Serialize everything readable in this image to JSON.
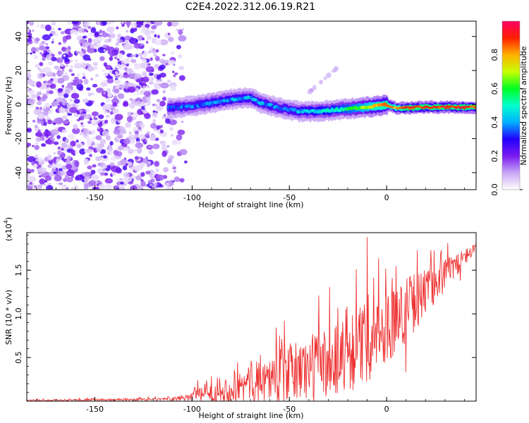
{
  "figure": {
    "title": "C2E4.2022.312.06.19.R21"
  },
  "colorbar": {
    "label": "Normalized spectral amplitude",
    "ticks": [
      "0.0",
      "0.2",
      "0.4",
      "0.6",
      "0.8"
    ],
    "tick_values": [
      0.0,
      0.2,
      0.4,
      0.6,
      0.8
    ],
    "range": [
      0,
      1
    ],
    "colors": [
      "#ffffff",
      "#c8a6f5",
      "#7a1af0",
      "#2200ff",
      "#00b0ff",
      "#00ffcc",
      "#00ff20",
      "#c8ff00",
      "#ffb000",
      "#ff2000",
      "#ff0066"
    ]
  },
  "chart_data": [
    {
      "type": "heatmap",
      "title": "C2E4.2022.312.06.19.R21",
      "xlabel": "Height of straight line (km)",
      "ylabel": "Frequency (Hz)",
      "xlim": [
        -185,
        46
      ],
      "ylim": [
        -50,
        49
      ],
      "xticks": [
        -150,
        -100,
        -50,
        0
      ],
      "xtick_labels": [
        "-150",
        "-100",
        "-50",
        "0"
      ],
      "yticks": [
        -40,
        -20,
        0,
        20,
        40
      ],
      "ytick_labels": [
        "-40",
        "-20",
        "0",
        "20",
        "40"
      ],
      "noise_region_x": [
        -185,
        -108
      ],
      "ridge": {
        "x": [
          -112,
          -100,
          -90,
          -80,
          -70,
          -65,
          -55,
          -45,
          -35,
          -25,
          -15,
          -5,
          0,
          5,
          10,
          20,
          30,
          46
        ],
        "freq": [
          -2,
          -1,
          1,
          3,
          4,
          1,
          -2,
          -4,
          -4,
          -3,
          -2,
          -1,
          0,
          -2,
          -2,
          -1.5,
          -1.5,
          -1.5
        ],
        "amplitude": [
          0.35,
          0.35,
          0.4,
          0.4,
          0.4,
          0.4,
          0.35,
          0.4,
          0.45,
          0.5,
          0.6,
          0.8,
          0.85,
          0.8,
          0.9,
          0.9,
          0.9,
          0.9
        ]
      },
      "faint_feature": {
        "x": [
          -40,
          -25
        ],
        "freq": [
          7,
          22
        ]
      }
    },
    {
      "type": "line",
      "xlabel": "Height of straight line (km)",
      "ylabel": "SNR (10 * v/v)",
      "scale_label": "(x10",
      "scale_exponent": "4",
      "scale_suffix": ")",
      "xlim": [
        -185,
        46
      ],
      "ylim": [
        0,
        1.93
      ],
      "xticks": [
        -150,
        -100,
        -50,
        0
      ],
      "xtick_labels": [
        "-150",
        "-100",
        "-50",
        "0"
      ],
      "yticks": [
        0.5,
        1.0,
        1.5
      ],
      "ytick_labels": [
        "0.5",
        "1.0",
        "1.5"
      ],
      "color": "#ee3333",
      "envelope": {
        "x": [
          -185,
          -110,
          -100,
          -90,
          -80,
          -70,
          -60,
          -50,
          -40,
          -30,
          -20,
          -10,
          0,
          10,
          20,
          30,
          40,
          46
        ],
        "baseline": [
          0.01,
          0.02,
          0.06,
          0.09,
          0.14,
          0.2,
          0.26,
          0.32,
          0.38,
          0.45,
          0.55,
          0.68,
          0.85,
          1.05,
          1.25,
          1.45,
          1.65,
          1.75
        ],
        "spread": [
          0.015,
          0.03,
          0.12,
          0.18,
          0.3,
          0.4,
          0.5,
          0.62,
          0.72,
          0.8,
          0.85,
          0.85,
          0.75,
          0.7,
          0.5,
          0.35,
          0.18,
          0.1
        ]
      },
      "peaks": [
        {
          "x": -97,
          "y": 0.24
        },
        {
          "x": -55,
          "y": 0.75
        },
        {
          "x": -25,
          "y": 1.07
        },
        {
          "x": -10,
          "y": 1.88
        },
        {
          "x": 10,
          "y": 0.33
        },
        {
          "x": 28,
          "y": 1.73
        },
        {
          "x": 38,
          "y": 1.38
        }
      ]
    }
  ]
}
